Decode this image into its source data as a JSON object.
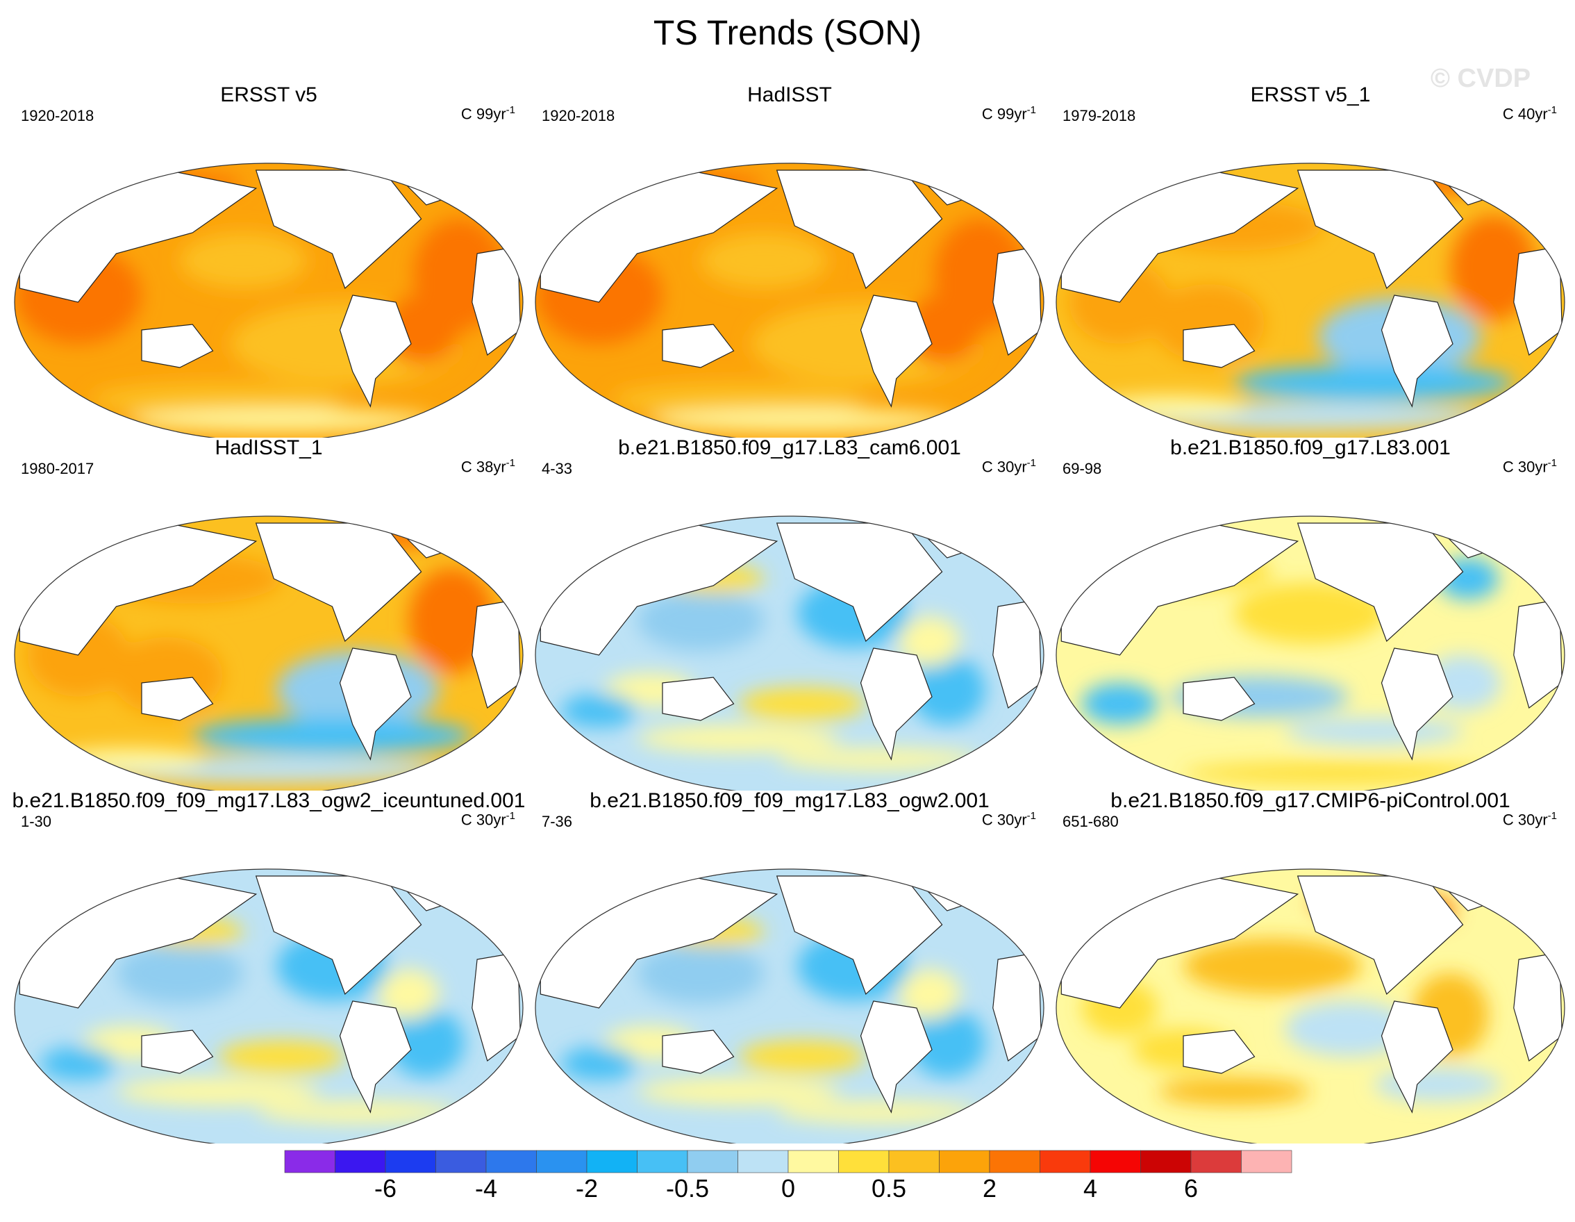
{
  "figure": {
    "title": "TS Trends (SON)",
    "watermark": "© CVDP"
  },
  "panels": [
    {
      "title": "ERSST v5",
      "years": "1920-2018",
      "units_prefix": "C 99yr",
      "units_sup": "-1",
      "pattern": "warm"
    },
    {
      "title": "HadISST",
      "years": "1920-2018",
      "units_prefix": "C 99yr",
      "units_sup": "-1",
      "pattern": "warm"
    },
    {
      "title": "ERSST v5_1",
      "years": "1979-2018",
      "units_prefix": "C 40yr",
      "units_sup": "-1",
      "pattern": "warm-lanina"
    },
    {
      "title": "HadISST_1",
      "years": "1980-2017",
      "units_prefix": "C 38yr",
      "units_sup": "-1",
      "pattern": "warm-lanina"
    },
    {
      "title": "b.e21.B1850.f09_g17.L83_cam6.001",
      "years": "4-33",
      "units_prefix": "C 30yr",
      "units_sup": "-1",
      "pattern": "cool"
    },
    {
      "title": "b.e21.B1850.f09_g17.L83.001",
      "years": "69-98",
      "units_prefix": "C 30yr",
      "units_sup": "-1",
      "pattern": "mixed"
    },
    {
      "title": "b.e21.B1850.f09_f09_mg17.L83_ogw2_iceuntuned.001",
      "years": "1-30",
      "units_prefix": "C 30yr",
      "units_sup": "-1",
      "pattern": "cool"
    },
    {
      "title": "b.e21.B1850.f09_f09_mg17.L83_ogw2.001",
      "years": "7-36",
      "units_prefix": "C 30yr",
      "units_sup": "-1",
      "pattern": "cool"
    },
    {
      "title": "b.e21.B1850.f09_g17.CMIP6-piControl.001",
      "years": "651-680",
      "units_prefix": "C 30yr",
      "units_sup": "-1",
      "pattern": "mixed-warm"
    }
  ],
  "colorbar": {
    "colors": [
      "#8a2be8",
      "#3b17f0",
      "#1c3cf0",
      "#3a5ce0",
      "#2d78ec",
      "#2a92f0",
      "#12b2f5",
      "#47c0f5",
      "#90cdf0",
      "#bde2f5",
      "#fff9a0",
      "#ffe03a",
      "#fcc020",
      "#fca30a",
      "#fb7405",
      "#f93a0c",
      "#f50504",
      "#cc0404",
      "#dc3b3b",
      "#fdb3b3"
    ],
    "tick_labels": [
      "-6",
      "-4",
      "-2",
      "-0.5",
      "0",
      "0.5",
      "2",
      "4",
      "6"
    ],
    "tick_boundaries": [
      2,
      4,
      6,
      8,
      10,
      12,
      14,
      16,
      18
    ]
  }
}
